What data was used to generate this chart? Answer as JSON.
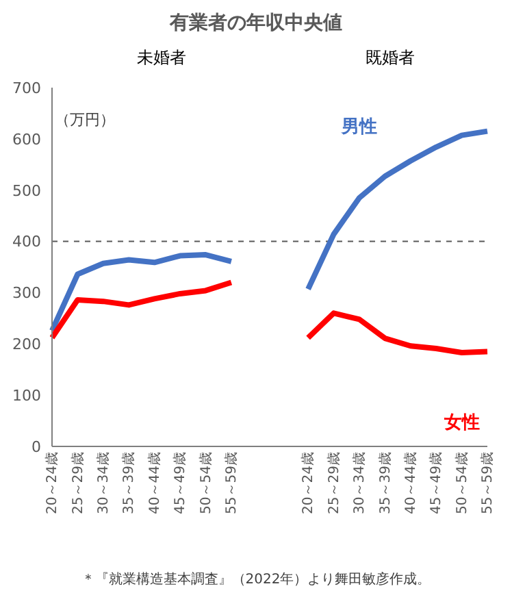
{
  "chart_data": {
    "type": "line",
    "title": "有業者の年収中央値",
    "ylabel": "（万円）",
    "categories": [
      "20～24歳",
      "25～29歳",
      "30～34歳",
      "35～39歳",
      "40～44歳",
      "45～49歳",
      "50～54歳",
      "55～59歳",
      null,
      null,
      "20～24歳",
      "25～29歳",
      "30～34歳",
      "35～39歳",
      "40～44歳",
      "45～49歳",
      "50～54歳",
      "55～59歳"
    ],
    "series": [
      {
        "name": "男性",
        "color": "#4472c4",
        "values": [
          226,
          336,
          357,
          364,
          359,
          372,
          374,
          361,
          null,
          null,
          307,
          414,
          485,
          527,
          557,
          584,
          607,
          615
        ]
      },
      {
        "name": "女性",
        "color": "#ff0000",
        "values": [
          212,
          286,
          283,
          276,
          288,
          298,
          304,
          320,
          null,
          null,
          212,
          260,
          248,
          211,
          196,
          191,
          183,
          185
        ]
      }
    ],
    "ylim": [
      0,
      700
    ],
    "yticks": [
      0,
      100,
      200,
      300,
      400,
      500,
      600,
      700
    ],
    "ref_lines": [
      {
        "axis": "y",
        "value": 400,
        "color": "#595959",
        "line_style": "dashed"
      }
    ],
    "annotations": [
      "未婚者",
      "既婚者",
      "＊『就業構造基本調査』（2022年）より舞田敏彦作成。"
    ],
    "grid": false,
    "legend": false,
    "marker": "none",
    "line_style": "solid"
  }
}
